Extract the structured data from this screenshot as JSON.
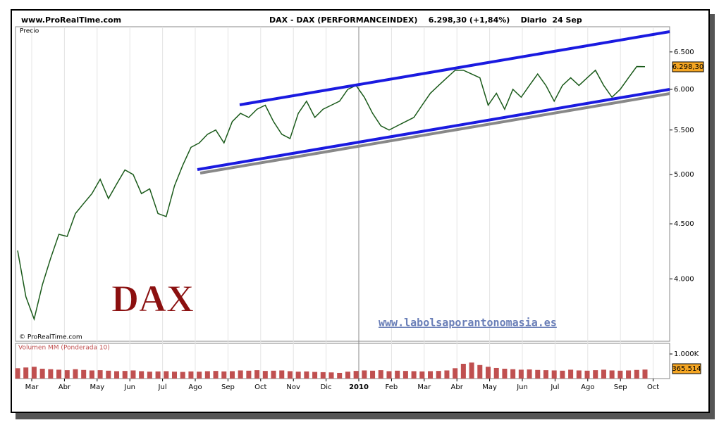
{
  "header": {
    "site": "www.ProRealTime.com",
    "title": "DAX - DAX (PERFORMANCEINDEX)    6.298,30 (+1,84%)    Diario  24 Sep"
  },
  "watermark": "DAX",
  "credit": "© ProRealTime.com",
  "link": "www.labolsaporantonomasia.es",
  "months": [
    "Mar",
    "Abr",
    "May",
    "Jun",
    "Jul",
    "Ago",
    "Sep",
    "Oct",
    "Nov",
    "Dic",
    "2010",
    "Feb",
    "Mar",
    "Abr",
    "May",
    "Jun",
    "Jul",
    "Ago",
    "Sep",
    "Oct"
  ],
  "chart_data": [
    {
      "type": "line",
      "title": "Precio",
      "log_scale": true,
      "last_label": "6.298,30",
      "ylim": [
        3500,
        6860
      ],
      "yticks": [
        {
          "value": 4000,
          "label": "4.000"
        },
        {
          "value": 4500,
          "label": "4.500"
        },
        {
          "value": 5000,
          "label": "5.000"
        },
        {
          "value": 5500,
          "label": "5.500"
        },
        {
          "value": 6000,
          "label": "6.000"
        },
        {
          "value": 6500,
          "label": "6.500"
        }
      ],
      "series": [
        {
          "color": "#1a5a1a",
          "values": [
            4250,
            3850,
            3670,
            3950,
            4180,
            4400,
            4380,
            4600,
            4700,
            4800,
            4950,
            4750,
            4900,
            5050,
            5000,
            4800,
            4850,
            4600,
            4570,
            4880,
            5100,
            5300,
            5350,
            5450,
            5500,
            5350,
            5600,
            5700,
            5650,
            5750,
            5800,
            5600,
            5450,
            5400,
            5700,
            5850,
            5650,
            5750,
            5800,
            5850,
            6000,
            6050,
            5900,
            5700,
            5550,
            5500,
            5550,
            5600,
            5650,
            5800,
            5950,
            6050,
            6150,
            6250,
            6250,
            6200,
            6150,
            5800,
            5950,
            5750,
            6000,
            5900,
            6050,
            6200,
            6050,
            5850,
            6050,
            6150,
            6050,
            6150,
            6250,
            6050,
            5900,
            6000,
            6150,
            6300,
            6298.3
          ]
        }
      ]
    },
    {
      "type": "bar",
      "title": "Volumen MM (Ponderada 10)",
      "ylim": [
        0,
        1430
      ],
      "yticks": [
        {
          "value": 1000,
          "label": "1.000K"
        }
      ],
      "series": [
        {
          "color": "#c05050",
          "values": [
            420,
            450,
            480,
            400,
            380,
            360,
            340,
            380,
            350,
            330,
            340,
            320,
            300,
            310,
            330,
            300,
            280,
            290,
            300,
            280,
            270,
            290,
            280,
            300,
            310,
            290,
            300,
            330,
            320,
            340,
            310,
            320,
            330,
            300,
            280,
            290,
            270,
            260,
            250,
            230,
            280,
            310,
            330,
            320,
            340,
            300,
            320,
            310,
            300,
            290,
            300,
            310,
            330,
            420,
            600,
            650,
            550,
            480,
            430,
            400,
            380,
            360,
            370,
            350,
            340,
            330,
            320,
            360,
            330,
            320,
            340,
            360,
            330,
            320,
            330,
            350,
            365.514
          ],
          "value_labels_last": "365.514"
        }
      ]
    }
  ]
}
